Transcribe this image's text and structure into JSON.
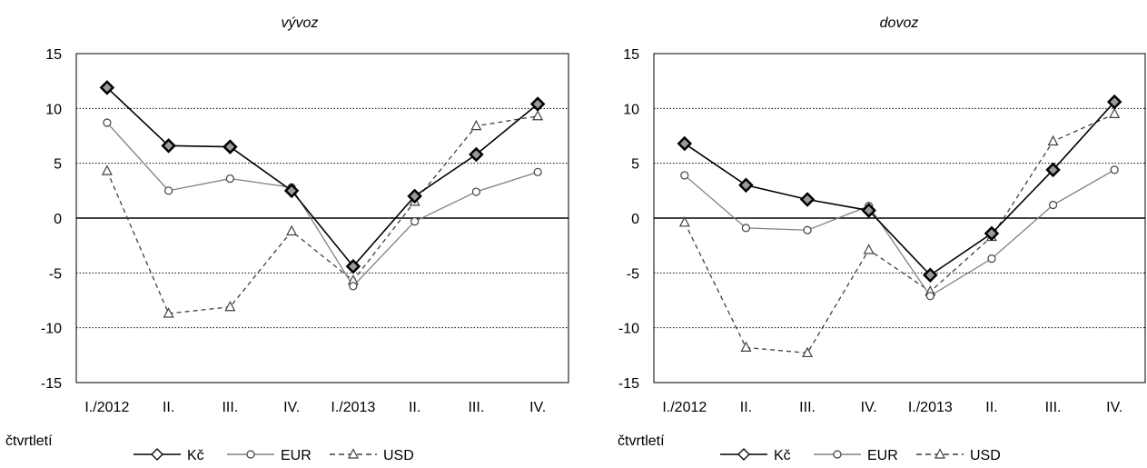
{
  "chart_data": [
    {
      "type": "line",
      "title": "vývoz",
      "xlabel": "čtvrtletí",
      "ylabel": "",
      "ylim": [
        -15,
        15
      ],
      "yticks": [
        15,
        10,
        5,
        0,
        -5,
        -10,
        -15
      ],
      "categories": [
        "I./2012",
        "II.",
        "III.",
        "IV.",
        "I./2013",
        "II.",
        "III.",
        "IV."
      ],
      "legend_position": "bottom",
      "grid": "horizontal-dotted",
      "series": [
        {
          "name": "Kč",
          "marker": "diamond",
          "color": "#000000",
          "dash": "solid",
          "values": [
            11.9,
            6.6,
            6.5,
            2.5,
            -4.4,
            2.0,
            5.8,
            10.4
          ]
        },
        {
          "name": "EUR",
          "marker": "circle",
          "color": "#808080",
          "dash": "solid",
          "values": [
            8.7,
            2.5,
            3.6,
            2.8,
            -6.2,
            -0.3,
            2.4,
            4.2
          ]
        },
        {
          "name": "USD",
          "marker": "triangle",
          "color": "#404040",
          "dash": "dashed",
          "values": [
            4.3,
            -8.7,
            -8.1,
            -1.2,
            -5.7,
            1.5,
            8.4,
            9.3
          ]
        }
      ]
    },
    {
      "type": "line",
      "title": "dovoz",
      "xlabel": "čtvrtletí",
      "ylabel": "",
      "ylim": [
        -15,
        15
      ],
      "yticks": [
        15,
        10,
        5,
        0,
        -5,
        -10,
        -15
      ],
      "categories": [
        "I./2012",
        "II.",
        "III.",
        "IV.",
        "I./2013",
        "II.",
        "III.",
        "IV."
      ],
      "legend_position": "bottom",
      "grid": "horizontal-dotted",
      "series": [
        {
          "name": "Kč",
          "marker": "diamond",
          "color": "#000000",
          "dash": "solid",
          "values": [
            6.8,
            3.0,
            1.7,
            0.7,
            -5.2,
            -1.4,
            4.4,
            10.6
          ]
        },
        {
          "name": "EUR",
          "marker": "circle",
          "color": "#808080",
          "dash": "solid",
          "values": [
            3.9,
            -0.9,
            -1.1,
            1.1,
            -7.1,
            -3.7,
            1.2,
            4.4
          ]
        },
        {
          "name": "USD",
          "marker": "triangle",
          "color": "#404040",
          "dash": "dashed",
          "values": [
            -0.4,
            -11.8,
            -12.3,
            -2.9,
            -6.7,
            -1.7,
            7.0,
            9.5
          ]
        }
      ]
    }
  ]
}
